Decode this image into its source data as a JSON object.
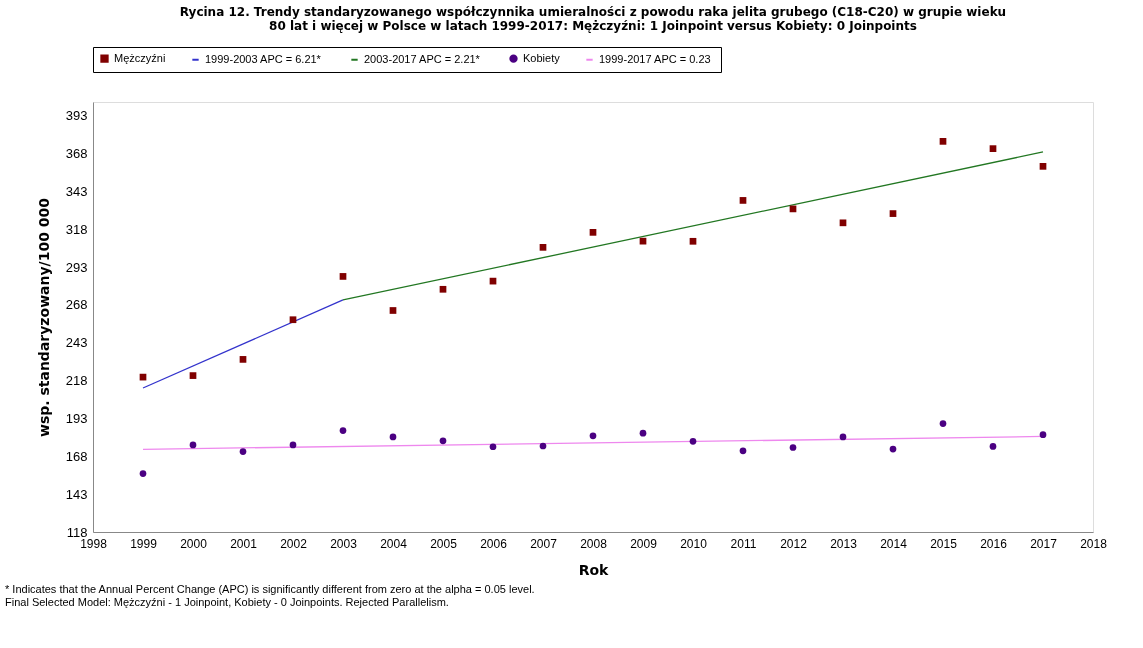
{
  "chart_data": {
    "type": "scatter",
    "title": "Rycina 12. Trendy standaryzowanego współczynnika umieralności z powodu raka jelita grubego (C18-C20) w grupie wieku\n80 lat i więcej w Polsce w latach 1999-2017: Mężczyźni: 1 Joinpoint  versus  Kobiety: 0 Joinpoints",
    "xlabel": "Rok",
    "ylabel": "wsp. standaryzowany/100 000",
    "x": [
      1999,
      2000,
      2001,
      2002,
      2003,
      2004,
      2005,
      2006,
      2007,
      2008,
      2009,
      2010,
      2011,
      2012,
      2013,
      2014,
      2015,
      2016,
      2017
    ],
    "series": [
      {
        "name": "Mężczyźni",
        "marker": "square",
        "color": "#800000",
        "values": [
          220.3,
          221.3,
          232,
          258.2,
          286.8,
          264.3,
          278.3,
          283.7,
          306,
          315.9,
          310.1,
          310,
          337,
          331.4,
          322.2,
          328.3,
          376,
          371.2,
          359.5
        ]
      },
      {
        "name": "1999-2003 APC  = 6.21*",
        "type": "line",
        "marker": "none",
        "color": "#3333cc",
        "x": [
          1999,
          2003
        ],
        "values": [
          213.1,
          271.3
        ]
      },
      {
        "name": "2003-2017 APC  = 2.21*",
        "type": "line",
        "marker": "none",
        "color": "#227722",
        "x": [
          2003,
          2017
        ],
        "values": [
          271.3,
          369
        ]
      },
      {
        "name": "Kobiety",
        "marker": "circle",
        "color": "#4b0082",
        "values": [
          156.6,
          175.5,
          171.1,
          175.5,
          185,
          180.8,
          178.2,
          174.3,
          174.8,
          181.5,
          183.3,
          177.9,
          171.6,
          173.8,
          180.8,
          172.8,
          189.6,
          174.5,
          182.3
        ]
      },
      {
        "name": "1999-2017 APC  = 0.23",
        "type": "line",
        "marker": "none",
        "color": "#ee88ee",
        "x": [
          1999,
          2017
        ],
        "values": [
          172.6,
          181.1
        ]
      }
    ],
    "xlim": [
      1998,
      2018
    ],
    "xticks": [
      1998,
      1999,
      2000,
      2001,
      2002,
      2003,
      2004,
      2005,
      2006,
      2007,
      2008,
      2009,
      2010,
      2011,
      2012,
      2013,
      2014,
      2015,
      2016,
      2017,
      2018
    ],
    "ylim": [
      118,
      402
    ],
    "yticks": [
      118,
      143,
      168,
      193,
      218,
      243,
      268,
      293,
      318,
      343,
      368,
      393
    ],
    "grid": false,
    "legend": "top",
    "annotations": [
      "* Indicates that the Annual Percent Change (APC) is significantly different from zero at the alpha = 0.05 level.",
      "Final Selected Model: Mężczyźni - 1 Joinpoint, Kobiety - 0 Joinpoints. Rejected Parallelism."
    ]
  }
}
